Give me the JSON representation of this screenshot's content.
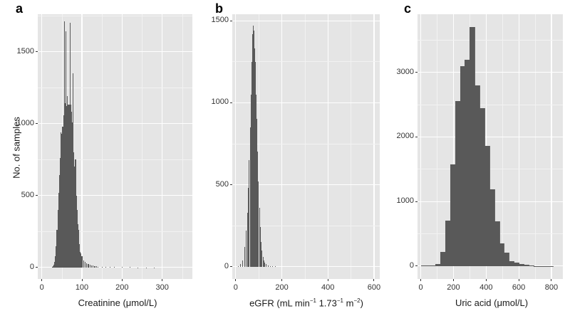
{
  "figure": {
    "ylabel": "No. of samples",
    "panels": [
      {
        "letter": "a",
        "xlabel": "Creatinine (μmol/L)"
      },
      {
        "letter": "b",
        "xlabel_main": "eGFR (mL min",
        "xlabel_sup1": "−1",
        "xlabel_mid": " 1.73",
        "xlabel_sup2": "−1",
        "xlabel_mid2": " m",
        "xlabel_sup3": "−2",
        "xlabel_end": ")"
      },
      {
        "letter": "c",
        "xlabel": "Uric acid (μmol/L)"
      }
    ]
  },
  "chart_data": [
    {
      "type": "bar",
      "subtype": "histogram",
      "panel": "a",
      "title": "",
      "xlabel": "Creatinine (μmol/L)",
      "ylabel": "No. of samples",
      "xlim": [
        -10,
        375
      ],
      "ylim": [
        -80,
        1760
      ],
      "xticks": [
        0,
        100,
        200,
        300
      ],
      "yticks": [
        0,
        500,
        1000,
        1500
      ],
      "grid": true,
      "bin_width": 2,
      "x": [
        26,
        28,
        30,
        32,
        34,
        36,
        38,
        40,
        42,
        44,
        46,
        48,
        50,
        52,
        54,
        56,
        58,
        60,
        62,
        64,
        66,
        68,
        70,
        72,
        74,
        76,
        78,
        80,
        82,
        84,
        86,
        88,
        90,
        92,
        94,
        96,
        98,
        100,
        104,
        108,
        112,
        116,
        120,
        124,
        128,
        132,
        136,
        140,
        150,
        160,
        170,
        180,
        200,
        220,
        240,
        260,
        280
      ],
      "values": [
        5,
        10,
        20,
        40,
        80,
        150,
        260,
        400,
        520,
        640,
        760,
        940,
        930,
        980,
        1060,
        1710,
        1140,
        1640,
        1120,
        1190,
        1130,
        1130,
        1700,
        1130,
        1080,
        1010,
        1350,
        800,
        700,
        750,
        500,
        400,
        300,
        260,
        160,
        110,
        100,
        80,
        50,
        40,
        30,
        25,
        20,
        15,
        12,
        10,
        8,
        6,
        5,
        4,
        3,
        3,
        2,
        2,
        1,
        1,
        1
      ]
    },
    {
      "type": "bar",
      "subtype": "histogram",
      "panel": "b",
      "title": "",
      "xlabel": "eGFR (mL min−1 1.73−1 m−2)",
      "ylabel": "",
      "xlim": [
        -15,
        625
      ],
      "ylim": [
        -75,
        1540
      ],
      "xticks": [
        0,
        200,
        400,
        600
      ],
      "yticks": [
        0,
        500,
        1000,
        1500
      ],
      "grid": true,
      "bin_width": 2,
      "x": [
        10,
        20,
        30,
        40,
        46,
        50,
        54,
        58,
        62,
        66,
        70,
        72,
        74,
        76,
        78,
        80,
        82,
        84,
        86,
        88,
        90,
        94,
        98,
        102,
        106,
        110,
        114,
        118,
        122,
        126,
        130,
        140,
        150,
        160,
        170
      ],
      "values": [
        5,
        15,
        40,
        120,
        220,
        330,
        480,
        650,
        850,
        1050,
        1250,
        1350,
        1420,
        1470,
        1440,
        1400,
        1330,
        1250,
        1150,
        1050,
        900,
        700,
        520,
        360,
        240,
        150,
        100,
        60,
        40,
        25,
        15,
        8,
        4,
        2,
        1
      ]
    },
    {
      "type": "bar",
      "subtype": "histogram",
      "panel": "c",
      "title": "",
      "xlabel": "Uric acid (μmol/L)",
      "ylabel": "",
      "xlim": [
        -20,
        870
      ],
      "ylim": [
        -200,
        3900
      ],
      "xticks": [
        0,
        200,
        400,
        600,
        800
      ],
      "yticks": [
        0,
        1000,
        2000,
        3000
      ],
      "grid": true,
      "bin_width": 30,
      "x": [
        15,
        45,
        75,
        105,
        135,
        165,
        195,
        225,
        255,
        285,
        315,
        345,
        375,
        405,
        435,
        465,
        495,
        525,
        555,
        585,
        615,
        645,
        675,
        705,
        735,
        765,
        795
      ],
      "values": [
        10,
        8,
        5,
        35,
        215,
        700,
        1570,
        2560,
        3100,
        3190,
        3700,
        2800,
        2450,
        1860,
        1190,
        690,
        350,
        210,
        80,
        50,
        30,
        15,
        8,
        3,
        2,
        1,
        1
      ]
    }
  ]
}
